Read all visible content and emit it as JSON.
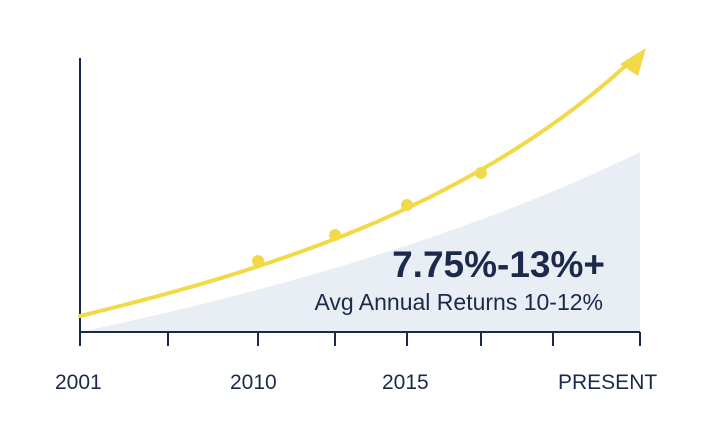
{
  "chart_data": {
    "type": "area",
    "x_tick_labels": [
      "2001",
      "2010",
      "2015",
      "PRESENT"
    ],
    "annotations": {
      "headline": "7.75%-13%+",
      "subline": "Avg Annual Returns 10-12%"
    },
    "grid": false,
    "legend": "none",
    "colors": {
      "line": "#f2d94a",
      "area": "#e9edf4",
      "axis": "#1b2a4a",
      "text": "#1b2a4a"
    },
    "arrow_icon": "arrow-head-icon"
  }
}
